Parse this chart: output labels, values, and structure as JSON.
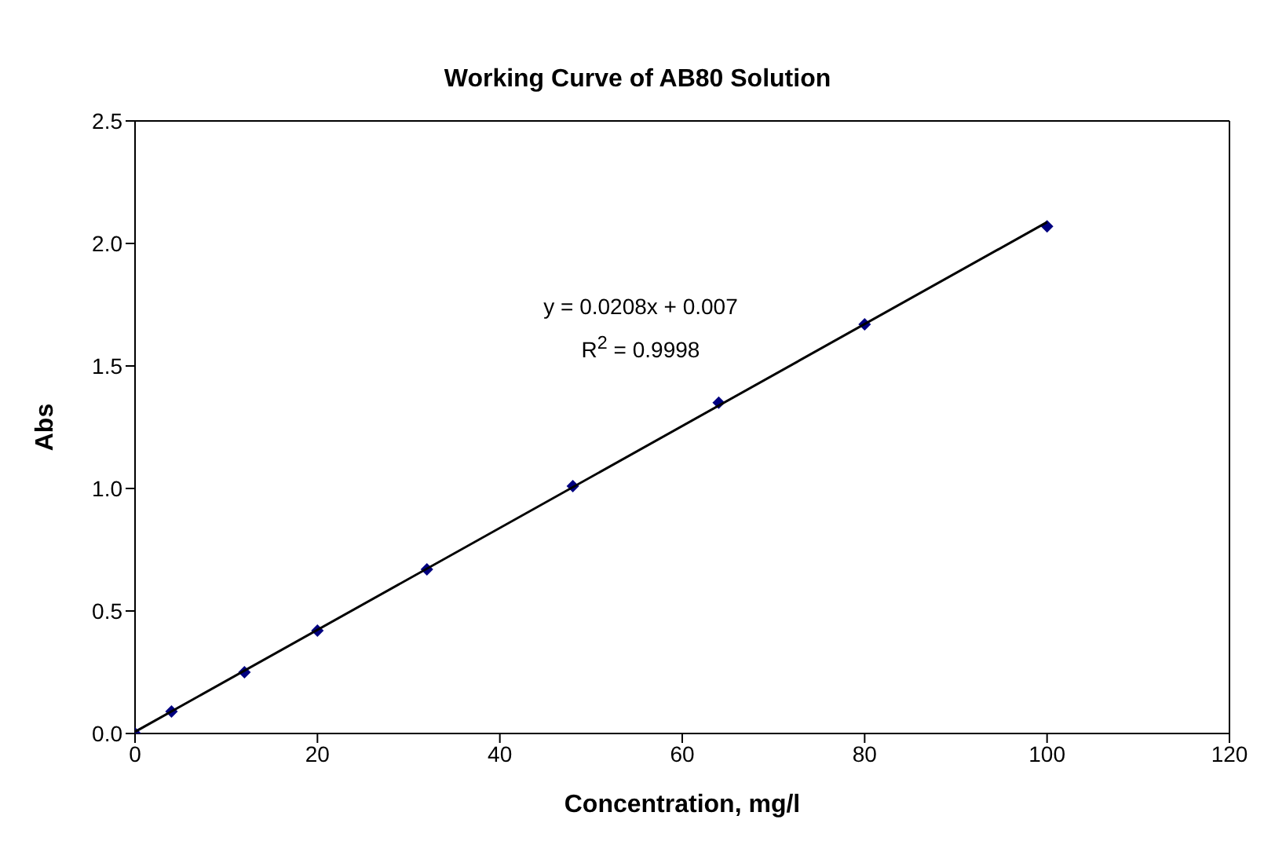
{
  "chart_data": {
    "type": "scatter",
    "title": "Working Curve of AB80 Solution",
    "xlabel": "Concentration, mg/l",
    "ylabel": "Abs",
    "series": [
      {
        "color": "#000080",
        "marker": "diamond",
        "x": [
          0,
          4,
          12,
          20,
          32,
          48,
          64,
          80,
          100
        ],
        "values": [
          0,
          0.09,
          0.25,
          0.42,
          0.67,
          1.01,
          1.35,
          1.67,
          2.07
        ]
      },
      {
        "type": "line",
        "color": "#000000",
        "marker": "none",
        "x": [
          0,
          100
        ],
        "values": [
          0.007,
          2.087
        ]
      }
    ],
    "xlim": [
      0,
      120
    ],
    "xticks": [
      0,
      20,
      40,
      60,
      80,
      100,
      120
    ],
    "ylim": [
      0,
      2.5
    ],
    "yticks": [
      {
        "value": 0,
        "label": "0.0"
      },
      {
        "value": 0.5,
        "label": "0.5"
      },
      {
        "value": 1,
        "label": "1.0"
      },
      {
        "value": 1.5,
        "label": "1.5"
      },
      {
        "value": 2,
        "label": "2.0"
      },
      {
        "value": 2.5,
        "label": "2.5"
      }
    ],
    "annotations": [
      "y = 0.0208x + 0.007",
      "R$^{2}$ = 0.9998"
    ],
    "legend": false
  }
}
